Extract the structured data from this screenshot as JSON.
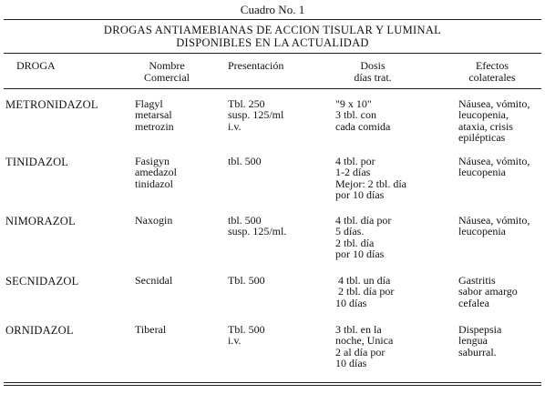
{
  "caption": "Cuadro No. 1",
  "title_line1": "DROGAS ANTIAMEBIANAS DE ACCION TISULAR Y LUMINAL",
  "title_line2": "DISPONIBLES EN LA ACTUALIDAD",
  "headers": {
    "droga": "DROGA",
    "nombre": "Nombre\nComercial",
    "presentacion": "Presentación",
    "dosis": "Dosis\ndías trat.",
    "efectos": "Efectos\ncolaterales"
  },
  "rows": [
    {
      "droga": "METRONIDAZOL",
      "nombre": "Flagyl\nmetarsal\nmetrozin",
      "presentacion": "Tbl. 250\nsusp. 125/ml\ni.v.",
      "dosis": "\"9 x 10\"\n3 tbl. con\ncada comida",
      "efectos": "Náusea, vómito,\nleucopenia,\nataxia, crisis\nepilépticas"
    },
    {
      "droga": "TINIDAZOL",
      "nombre": "Fasigyn\namedazol\ntinidazol",
      "presentacion": "tbl. 500",
      "dosis": "4 tbl. por\n1-2 días\nMejor: 2 tbl. día\npor 10 días",
      "efectos": "Náusea, vómito,\nleucopenia"
    },
    {
      "droga": "NIMORAZOL",
      "nombre": "Naxogin",
      "presentacion": "tbl. 500\nsusp. 125/ml.",
      "dosis": "4 tbl. día por\n5 días.\n2 tbl. día\npor 10 días",
      "efectos": "Náusea, vómito,\nleucopenia"
    },
    {
      "droga": "SECNIDAZOL",
      "nombre": "Secnidal",
      "presentacion": "Tbl. 500",
      "dosis": " 4 tbl. un día\n 2 tbl. día por\n10 días",
      "efectos": "Gastritis\nsabor amargo\ncefalea"
    },
    {
      "droga": "ORNIDAZOL",
      "nombre": "Tiberal",
      "presentacion": "Tbl. 500\ni.v.",
      "dosis": "3 tbl. en la\nnoche, Unica\n2 al día por\n10 días",
      "efectos": "Dispepsia\nlengua\nsaburral."
    }
  ]
}
